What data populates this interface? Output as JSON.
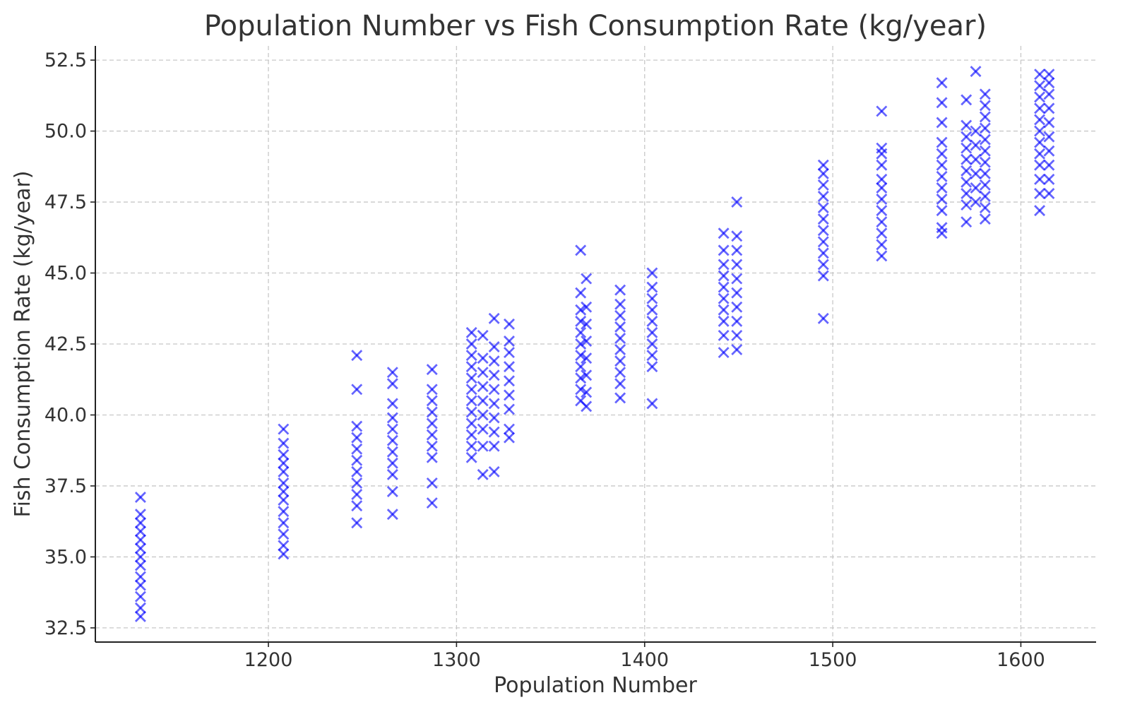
{
  "chart_data": {
    "type": "scatter",
    "title": "Population Number vs Fish Consumption Rate (kg/year)",
    "xlabel": "Population Number",
    "ylabel": "Fish Consumption Rate (kg/year)",
    "xlim": [
      1108,
      1640
    ],
    "ylim": [
      32.0,
      53.0
    ],
    "x_ticks": [
      "1200",
      "1300",
      "1400",
      "1500",
      "1600"
    ],
    "y_ticks": [
      "32.5",
      "35.0",
      "37.5",
      "40.0",
      "42.5",
      "45.0",
      "47.5",
      "50.0",
      "52.5"
    ],
    "grid": true,
    "marker": "x",
    "color": "#0000ff",
    "series": [
      {
        "points": [
          [
            1132,
            32.9
          ],
          [
            1132,
            33.2
          ],
          [
            1132,
            33.6
          ],
          [
            1132,
            34.0
          ],
          [
            1132,
            34.3
          ],
          [
            1132,
            34.7
          ],
          [
            1132,
            35.0
          ],
          [
            1132,
            35.3
          ],
          [
            1132,
            35.6
          ],
          [
            1132,
            35.9
          ],
          [
            1132,
            36.2
          ],
          [
            1132,
            36.5
          ],
          [
            1132,
            37.1
          ],
          [
            1208,
            35.1
          ],
          [
            1208,
            35.4
          ],
          [
            1208,
            35.8
          ],
          [
            1208,
            36.2
          ],
          [
            1208,
            36.6
          ],
          [
            1208,
            37.0
          ],
          [
            1208,
            37.3
          ],
          [
            1208,
            37.6
          ],
          [
            1208,
            38.0
          ],
          [
            1208,
            38.3
          ],
          [
            1208,
            38.6
          ],
          [
            1208,
            39.0
          ],
          [
            1208,
            39.5
          ],
          [
            1247,
            36.2
          ],
          [
            1247,
            36.8
          ],
          [
            1247,
            37.2
          ],
          [
            1247,
            37.6
          ],
          [
            1247,
            38.0
          ],
          [
            1247,
            38.4
          ],
          [
            1247,
            38.8
          ],
          [
            1247,
            39.2
          ],
          [
            1247,
            39.6
          ],
          [
            1247,
            40.9
          ],
          [
            1247,
            42.1
          ],
          [
            1266,
            36.5
          ],
          [
            1266,
            37.3
          ],
          [
            1266,
            37.9
          ],
          [
            1266,
            38.3
          ],
          [
            1266,
            38.7
          ],
          [
            1266,
            39.1
          ],
          [
            1266,
            39.5
          ],
          [
            1266,
            39.9
          ],
          [
            1266,
            40.4
          ],
          [
            1266,
            41.1
          ],
          [
            1266,
            41.5
          ],
          [
            1287,
            36.9
          ],
          [
            1287,
            37.6
          ],
          [
            1287,
            38.5
          ],
          [
            1287,
            38.9
          ],
          [
            1287,
            39.3
          ],
          [
            1287,
            39.7
          ],
          [
            1287,
            40.1
          ],
          [
            1287,
            40.5
          ],
          [
            1287,
            40.9
          ],
          [
            1287,
            41.6
          ],
          [
            1308,
            38.5
          ],
          [
            1308,
            38.9
          ],
          [
            1308,
            39.3
          ],
          [
            1308,
            39.7
          ],
          [
            1308,
            40.1
          ],
          [
            1308,
            40.5
          ],
          [
            1308,
            40.9
          ],
          [
            1308,
            41.3
          ],
          [
            1308,
            41.7
          ],
          [
            1308,
            42.1
          ],
          [
            1308,
            42.5
          ],
          [
            1308,
            42.9
          ],
          [
            1314,
            37.9
          ],
          [
            1314,
            38.9
          ],
          [
            1314,
            39.5
          ],
          [
            1314,
            40.0
          ],
          [
            1314,
            40.5
          ],
          [
            1314,
            41.0
          ],
          [
            1314,
            41.5
          ],
          [
            1314,
            42.0
          ],
          [
            1314,
            42.8
          ],
          [
            1320,
            38.0
          ],
          [
            1320,
            38.9
          ],
          [
            1320,
            39.4
          ],
          [
            1320,
            39.9
          ],
          [
            1320,
            40.4
          ],
          [
            1320,
            40.9
          ],
          [
            1320,
            41.4
          ],
          [
            1320,
            41.9
          ],
          [
            1320,
            42.4
          ],
          [
            1320,
            43.4
          ],
          [
            1328,
            39.2
          ],
          [
            1328,
            39.5
          ],
          [
            1328,
            40.2
          ],
          [
            1328,
            40.7
          ],
          [
            1328,
            41.2
          ],
          [
            1328,
            41.7
          ],
          [
            1328,
            42.2
          ],
          [
            1328,
            42.6
          ],
          [
            1328,
            43.2
          ],
          [
            1366,
            40.5
          ],
          [
            1366,
            40.9
          ],
          [
            1366,
            41.3
          ],
          [
            1366,
            41.7
          ],
          [
            1366,
            42.1
          ],
          [
            1366,
            42.5
          ],
          [
            1366,
            42.9
          ],
          [
            1366,
            43.3
          ],
          [
            1366,
            43.7
          ],
          [
            1366,
            44.3
          ],
          [
            1366,
            45.8
          ],
          [
            1369,
            40.3
          ],
          [
            1369,
            40.8
          ],
          [
            1369,
            41.4
          ],
          [
            1369,
            42.0
          ],
          [
            1369,
            42.6
          ],
          [
            1369,
            43.2
          ],
          [
            1369,
            43.8
          ],
          [
            1369,
            44.8
          ],
          [
            1387,
            40.6
          ],
          [
            1387,
            41.1
          ],
          [
            1387,
            41.5
          ],
          [
            1387,
            41.9
          ],
          [
            1387,
            42.3
          ],
          [
            1387,
            42.7
          ],
          [
            1387,
            43.1
          ],
          [
            1387,
            43.5
          ],
          [
            1387,
            43.9
          ],
          [
            1387,
            44.4
          ],
          [
            1404,
            40.4
          ],
          [
            1404,
            41.7
          ],
          [
            1404,
            42.1
          ],
          [
            1404,
            42.5
          ],
          [
            1404,
            42.9
          ],
          [
            1404,
            43.3
          ],
          [
            1404,
            43.7
          ],
          [
            1404,
            44.1
          ],
          [
            1404,
            44.5
          ],
          [
            1404,
            45.0
          ],
          [
            1442,
            42.2
          ],
          [
            1442,
            42.8
          ],
          [
            1442,
            43.3
          ],
          [
            1442,
            43.7
          ],
          [
            1442,
            44.1
          ],
          [
            1442,
            44.5
          ],
          [
            1442,
            44.9
          ],
          [
            1442,
            45.3
          ],
          [
            1442,
            45.8
          ],
          [
            1442,
            46.4
          ],
          [
            1449,
            42.3
          ],
          [
            1449,
            42.8
          ],
          [
            1449,
            43.3
          ],
          [
            1449,
            43.8
          ],
          [
            1449,
            44.3
          ],
          [
            1449,
            44.8
          ],
          [
            1449,
            45.3
          ],
          [
            1449,
            45.8
          ],
          [
            1449,
            46.3
          ],
          [
            1449,
            47.5
          ],
          [
            1495,
            43.4
          ],
          [
            1495,
            44.9
          ],
          [
            1495,
            45.3
          ],
          [
            1495,
            45.7
          ],
          [
            1495,
            46.1
          ],
          [
            1495,
            46.5
          ],
          [
            1495,
            46.9
          ],
          [
            1495,
            47.3
          ],
          [
            1495,
            47.7
          ],
          [
            1495,
            48.1
          ],
          [
            1495,
            48.5
          ],
          [
            1495,
            48.8
          ],
          [
            1526,
            45.6
          ],
          [
            1526,
            46.0
          ],
          [
            1526,
            46.4
          ],
          [
            1526,
            46.8
          ],
          [
            1526,
            47.2
          ],
          [
            1526,
            47.6
          ],
          [
            1526,
            48.0
          ],
          [
            1526,
            48.3
          ],
          [
            1526,
            48.8
          ],
          [
            1526,
            49.2
          ],
          [
            1526,
            49.4
          ],
          [
            1526,
            50.7
          ],
          [
            1558,
            46.4
          ],
          [
            1558,
            46.6
          ],
          [
            1558,
            47.2
          ],
          [
            1558,
            47.6
          ],
          [
            1558,
            48.0
          ],
          [
            1558,
            48.4
          ],
          [
            1558,
            48.8
          ],
          [
            1558,
            49.2
          ],
          [
            1558,
            49.6
          ],
          [
            1558,
            50.3
          ],
          [
            1558,
            51.0
          ],
          [
            1558,
            51.7
          ],
          [
            1571,
            46.8
          ],
          [
            1571,
            47.4
          ],
          [
            1571,
            47.8
          ],
          [
            1571,
            48.2
          ],
          [
            1571,
            48.6
          ],
          [
            1571,
            49.0
          ],
          [
            1571,
            49.4
          ],
          [
            1571,
            49.8
          ],
          [
            1571,
            50.2
          ],
          [
            1571,
            51.1
          ],
          [
            1576,
            47.5
          ],
          [
            1576,
            48.0
          ],
          [
            1576,
            48.5
          ],
          [
            1576,
            49.0
          ],
          [
            1576,
            49.5
          ],
          [
            1576,
            50.0
          ],
          [
            1576,
            52.1
          ],
          [
            1581,
            46.9
          ],
          [
            1581,
            47.3
          ],
          [
            1581,
            47.7
          ],
          [
            1581,
            48.1
          ],
          [
            1581,
            48.5
          ],
          [
            1581,
            48.9
          ],
          [
            1581,
            49.3
          ],
          [
            1581,
            49.7
          ],
          [
            1581,
            50.1
          ],
          [
            1581,
            50.5
          ],
          [
            1581,
            50.9
          ],
          [
            1581,
            51.3
          ],
          [
            1610,
            47.2
          ],
          [
            1610,
            47.8
          ],
          [
            1610,
            48.3
          ],
          [
            1610,
            48.8
          ],
          [
            1610,
            49.2
          ],
          [
            1610,
            49.6
          ],
          [
            1610,
            50.0
          ],
          [
            1610,
            50.4
          ],
          [
            1610,
            50.8
          ],
          [
            1610,
            51.2
          ],
          [
            1610,
            51.6
          ],
          [
            1610,
            52.0
          ],
          [
            1615,
            47.8
          ],
          [
            1615,
            48.3
          ],
          [
            1615,
            48.8
          ],
          [
            1615,
            49.3
          ],
          [
            1615,
            49.8
          ],
          [
            1615,
            50.3
          ],
          [
            1615,
            50.8
          ],
          [
            1615,
            51.3
          ],
          [
            1615,
            51.7
          ],
          [
            1615,
            52.0
          ]
        ]
      }
    ]
  }
}
